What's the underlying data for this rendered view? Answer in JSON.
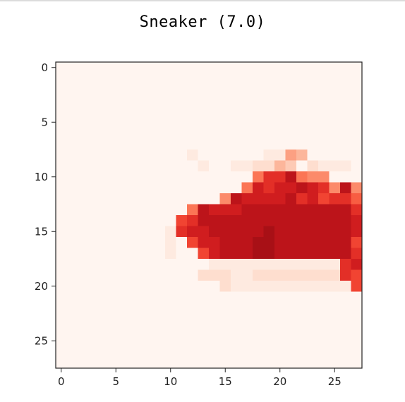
{
  "chart_data": {
    "type": "heatmap",
    "title": "Sneaker (7.0)",
    "colormap": "Reds",
    "vmin": 0,
    "vmax": 255,
    "x_ticks": [
      "0",
      "5",
      "10",
      "15",
      "20",
      "25"
    ],
    "y_ticks": [
      "0",
      "5",
      "10",
      "15",
      "20",
      "25"
    ],
    "xlim": [
      -0.5,
      27.5
    ],
    "ylim": [
      27.5,
      -0.5
    ],
    "grid": false,
    "shape": [
      28,
      28
    ],
    "rows": [
      "0000000000000000000000000000",
      "0000000000000000000000000000",
      "0000000000000000000000000000",
      "0000000000000000000000000000",
      "0000000000000000000000000000",
      "0000000000000000000000000000",
      "0000000000000000000000000000",
      "0000000000000000000000000000",
      "0000000000001000000115400000",
      "0000000000000100112243021110",
      "0000000000000000007AAC766000",
      "000000000000000007BABBCBA6C6",
      "0000000000000006CBBBBCAB9AA8",
      "0000000000007CBBBCCCCCCCCCCA",
      "000000000009ACCCCCCCCCCCCCCB",
      "00000000001ABBCCCCCDCCCCCCCB",
      "0000000000109BBCCCDDCCCCCCC9",
      "00000000001009BCCCDDCCCCCCCA",
      "00000000000000111111111111AB",
      "00000000000002221122222222A9",
      "0000000000000002111111111119",
      "0000000000000000000000000000",
      "0000000000000000000000000000",
      "0000000000000000000000000000",
      "0000000000000000000000000000",
      "0000000000000000000000000000",
      "0000000000000000000000000000",
      "0000000000000000000000000000"
    ]
  }
}
